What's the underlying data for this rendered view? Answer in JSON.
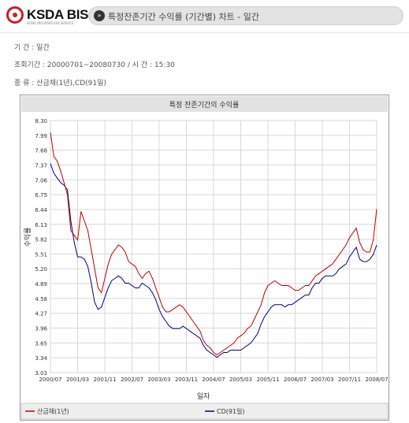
{
  "header": {
    "logo_text": "KSDA BIS",
    "logo_subtitle": "BOND INFORMATION SERVICE",
    "title_icon": "double-chevron-right-icon",
    "title": "특정잔존기간 수익률 (기간별) 차트 - 일간"
  },
  "info": {
    "period_label": "기 간 : 일간",
    "query_label": "조회기간 : 20000701~20080730  /  시 간 : 15:30",
    "type_label": "종 류 : 산금채(1년),CD(91일)"
  },
  "colors": {
    "series1": "#c00000",
    "series2": "#000080",
    "plot_bg": "#ffffff",
    "grid": "#d8d8d8"
  },
  "chart_data": {
    "type": "line",
    "title": "특정 잔존기간의 수익률",
    "xlabel": "일자",
    "ylabel": "수익률",
    "ylim": [
      3.03,
      8.3
    ],
    "yticks": [
      "8.30",
      "7.99",
      "7.68",
      "7.37",
      "7.06",
      "6.75",
      "6.44",
      "6.13",
      "5.82",
      "5.51",
      "5.20",
      "4.89",
      "4.58",
      "4.27",
      "3.96",
      "3.65",
      "3.34",
      "3.03"
    ],
    "xticks": [
      "2000/07",
      "2001/03",
      "2001/11",
      "2002/07",
      "2003/03",
      "2003/11",
      "2004/07",
      "2005/03",
      "2005/11",
      "2006/07",
      "2007/03",
      "2007/11",
      "2008/07"
    ],
    "xrange": [
      "2000/07",
      "2008/07"
    ],
    "grid": true,
    "legend_position": "bottom",
    "series": [
      {
        "name": "산금채(1년)",
        "x": [
          "2000/07",
          "2000/08",
          "2000/09",
          "2000/10",
          "2000/11",
          "2000/12",
          "2001/01",
          "2001/02",
          "2001/03",
          "2001/04",
          "2001/05",
          "2001/06",
          "2001/07",
          "2001/08",
          "2001/09",
          "2001/10",
          "2001/11",
          "2001/12",
          "2002/01",
          "2002/02",
          "2002/03",
          "2002/04",
          "2002/05",
          "2002/06",
          "2002/07",
          "2002/08",
          "2002/09",
          "2002/10",
          "2002/11",
          "2002/12",
          "2003/01",
          "2003/02",
          "2003/03",
          "2003/04",
          "2003/05",
          "2003/06",
          "2003/07",
          "2003/08",
          "2003/09",
          "2003/10",
          "2003/11",
          "2003/12",
          "2004/01",
          "2004/02",
          "2004/03",
          "2004/04",
          "2004/05",
          "2004/06",
          "2004/07",
          "2004/08",
          "2004/09",
          "2004/10",
          "2004/11",
          "2004/12",
          "2005/01",
          "2005/02",
          "2005/03",
          "2005/04",
          "2005/05",
          "2005/06",
          "2005/07",
          "2005/08",
          "2005/09",
          "2005/10",
          "2005/11",
          "2005/12",
          "2006/01",
          "2006/02",
          "2006/03",
          "2006/04",
          "2006/05",
          "2006/06",
          "2006/07",
          "2006/08",
          "2006/09",
          "2006/10",
          "2006/11",
          "2006/12",
          "2007/01",
          "2007/02",
          "2007/03",
          "2007/04",
          "2007/05",
          "2007/06",
          "2007/07",
          "2007/08",
          "2007/09",
          "2007/10",
          "2007/11",
          "2007/12",
          "2008/01",
          "2008/02",
          "2008/03",
          "2008/04",
          "2008/05",
          "2008/06",
          "2008/07"
        ],
        "values": [
          8.05,
          7.55,
          7.45,
          7.25,
          7.0,
          6.75,
          6.0,
          5.9,
          5.8,
          6.4,
          6.2,
          6.0,
          5.6,
          5.2,
          4.8,
          4.7,
          5.0,
          5.3,
          5.5,
          5.6,
          5.7,
          5.65,
          5.55,
          5.35,
          5.3,
          5.25,
          5.1,
          5.0,
          5.1,
          5.15,
          5.0,
          4.8,
          4.6,
          4.4,
          4.3,
          4.3,
          4.35,
          4.4,
          4.45,
          4.4,
          4.3,
          4.2,
          4.1,
          4.0,
          3.9,
          3.7,
          3.6,
          3.55,
          3.45,
          3.4,
          3.45,
          3.5,
          3.55,
          3.6,
          3.65,
          3.75,
          3.8,
          3.85,
          3.95,
          4.0,
          4.15,
          4.3,
          4.45,
          4.7,
          4.85,
          4.9,
          4.95,
          4.9,
          4.85,
          4.85,
          4.85,
          4.8,
          4.75,
          4.75,
          4.8,
          4.85,
          4.85,
          4.95,
          5.05,
          5.1,
          5.15,
          5.2,
          5.25,
          5.3,
          5.4,
          5.5,
          5.6,
          5.7,
          5.85,
          5.95,
          6.05,
          5.75,
          5.6,
          5.55,
          5.55,
          5.8,
          6.45
        ]
      },
      {
        "name": "CD(91일)",
        "x": [
          "2000/07",
          "2000/08",
          "2000/09",
          "2000/10",
          "2000/11",
          "2000/12",
          "2001/01",
          "2001/02",
          "2001/03",
          "2001/04",
          "2001/05",
          "2001/06",
          "2001/07",
          "2001/08",
          "2001/09",
          "2001/10",
          "2001/11",
          "2001/12",
          "2002/01",
          "2002/02",
          "2002/03",
          "2002/04",
          "2002/05",
          "2002/06",
          "2002/07",
          "2002/08",
          "2002/09",
          "2002/10",
          "2002/11",
          "2002/12",
          "2003/01",
          "2003/02",
          "2003/03",
          "2003/04",
          "2003/05",
          "2003/06",
          "2003/07",
          "2003/08",
          "2003/09",
          "2003/10",
          "2003/11",
          "2003/12",
          "2004/01",
          "2004/02",
          "2004/03",
          "2004/04",
          "2004/05",
          "2004/06",
          "2004/07",
          "2004/08",
          "2004/09",
          "2004/10",
          "2004/11",
          "2004/12",
          "2005/01",
          "2005/02",
          "2005/03",
          "2005/04",
          "2005/05",
          "2005/06",
          "2005/07",
          "2005/08",
          "2005/09",
          "2005/10",
          "2005/11",
          "2005/12",
          "2006/01",
          "2006/02",
          "2006/03",
          "2006/04",
          "2006/05",
          "2006/06",
          "2006/07",
          "2006/08",
          "2006/09",
          "2006/10",
          "2006/11",
          "2006/12",
          "2007/01",
          "2007/02",
          "2007/03",
          "2007/04",
          "2007/05",
          "2007/06",
          "2007/07",
          "2007/08",
          "2007/09",
          "2007/10",
          "2007/11",
          "2007/12",
          "2008/01",
          "2008/02",
          "2008/03",
          "2008/04",
          "2008/05",
          "2008/06",
          "2008/07"
        ],
        "values": [
          7.4,
          7.2,
          7.1,
          7.0,
          6.95,
          6.85,
          6.2,
          5.75,
          5.45,
          5.45,
          5.4,
          5.25,
          4.9,
          4.5,
          4.35,
          4.4,
          4.6,
          4.8,
          4.95,
          5.0,
          5.05,
          5.0,
          4.9,
          4.9,
          4.85,
          4.8,
          4.8,
          4.9,
          4.85,
          4.8,
          4.7,
          4.55,
          4.35,
          4.2,
          4.1,
          4.0,
          3.95,
          3.95,
          3.95,
          4.0,
          3.95,
          3.9,
          3.85,
          3.8,
          3.75,
          3.6,
          3.5,
          3.45,
          3.4,
          3.35,
          3.4,
          3.45,
          3.45,
          3.5,
          3.5,
          3.5,
          3.5,
          3.55,
          3.6,
          3.65,
          3.75,
          3.85,
          4.05,
          4.2,
          4.3,
          4.4,
          4.45,
          4.45,
          4.45,
          4.4,
          4.45,
          4.45,
          4.5,
          4.55,
          4.6,
          4.65,
          4.65,
          4.8,
          4.9,
          4.9,
          5.0,
          5.05,
          5.05,
          5.05,
          5.1,
          5.2,
          5.25,
          5.3,
          5.45,
          5.55,
          5.65,
          5.4,
          5.35,
          5.35,
          5.4,
          5.5,
          5.7
        ]
      }
    ]
  }
}
